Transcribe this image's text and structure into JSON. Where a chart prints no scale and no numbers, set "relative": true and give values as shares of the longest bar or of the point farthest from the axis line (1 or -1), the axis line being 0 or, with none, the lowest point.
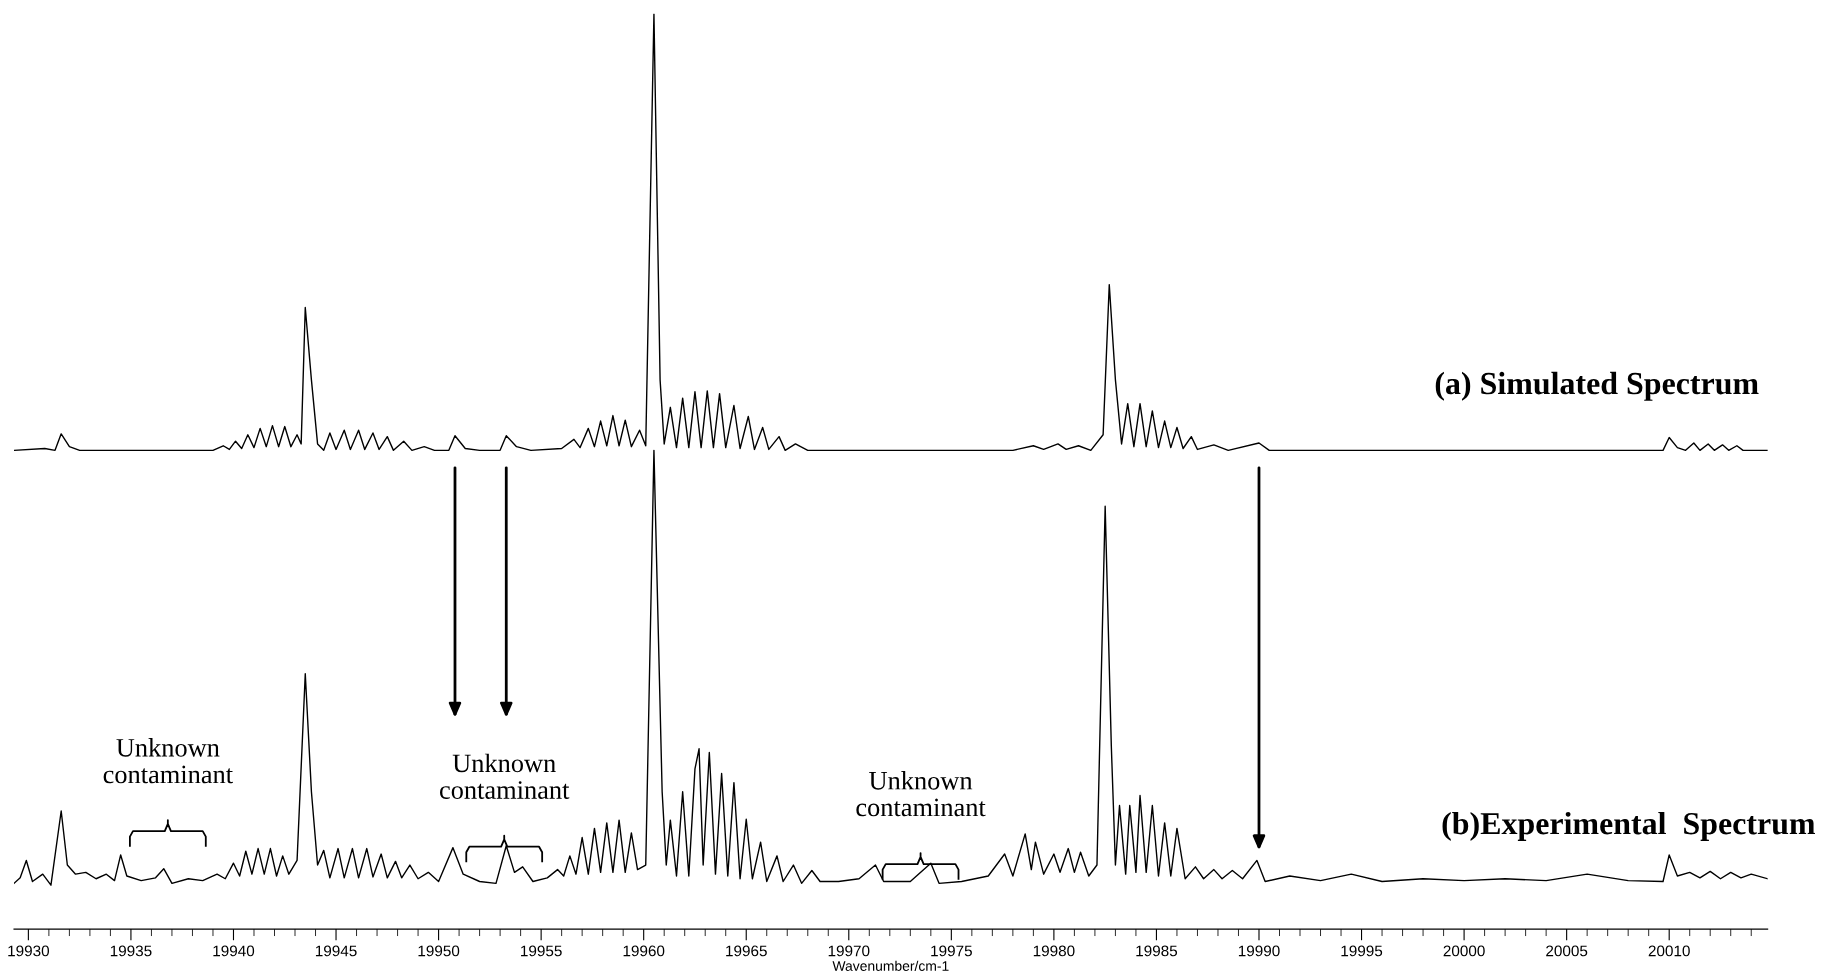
{
  "chart_data": {
    "type": "line",
    "relative": true,
    "xlabel": "Wavenumber/cm-1",
    "xlim": [
      19929.3,
      20014.8
    ],
    "xticks": [
      19930,
      19935,
      19940,
      19945,
      19950,
      19955,
      19960,
      19965,
      19970,
      19975,
      19980,
      19985,
      19990,
      19995,
      20000,
      20005,
      20010
    ],
    "grid": false,
    "legend": false,
    "marker": "none",
    "line_style": "solid",
    "annotations": [
      "Unknown\ncontaminant",
      "Unknown\ncontaminant",
      "Unknown\ncontaminant"
    ],
    "series": [
      {
        "name": "(a) Simulated Spectrum",
        "color": "#000000",
        "x": [
          19929.3,
          19930.8,
          19931.3,
          19931.6,
          19932.0,
          19932.5,
          19939.0,
          19939.5,
          19939.8,
          19940.1,
          19940.4,
          19940.7,
          19941.0,
          19941.3,
          19941.6,
          19941.9,
          19942.2,
          19942.5,
          19942.8,
          19943.1,
          19943.3,
          19943.5,
          19943.8,
          19944.1,
          19944.4,
          19944.7,
          19945.0,
          19945.4,
          19945.7,
          19946.1,
          19946.4,
          19946.8,
          19947.1,
          19947.5,
          19947.8,
          19948.3,
          19948.7,
          19949.3,
          19949.8,
          19950.5,
          19950.8,
          19951.3,
          19952.0,
          19953.0,
          19953.3,
          19953.8,
          19954.5,
          19956.0,
          19956.6,
          19956.9,
          19957.3,
          19957.6,
          19957.9,
          19958.2,
          19958.5,
          19958.8,
          19959.1,
          19959.4,
          19959.8,
          19960.1,
          19960.5,
          19960.8,
          19961.0,
          19961.3,
          19961.6,
          19961.9,
          19962.2,
          19962.5,
          19962.8,
          19963.1,
          19963.4,
          19963.7,
          19964.0,
          19964.4,
          19964.7,
          19965.1,
          19965.4,
          19965.8,
          19966.1,
          19966.6,
          19966.9,
          19967.4,
          19968.0,
          19978.0,
          19979.0,
          19979.5,
          19980.2,
          19980.6,
          19981.2,
          19981.8,
          19982.4,
          19982.7,
          19983.0,
          19983.3,
          19983.6,
          19983.9,
          19984.2,
          19984.5,
          19984.8,
          19985.1,
          19985.4,
          19985.7,
          19986.0,
          19986.3,
          19986.7,
          19987.0,
          19987.8,
          19988.5,
          19990.0,
          19990.5,
          20009.7,
          20010.0,
          20010.4,
          20010.8,
          20011.2,
          20011.5,
          20011.9,
          20012.2,
          20012.6,
          20012.9,
          20013.3,
          20013.6,
          20014.8
        ],
        "values": [
          0.523,
          0.525,
          0.523,
          0.541,
          0.527,
          0.523,
          0.523,
          0.528,
          0.524,
          0.533,
          0.525,
          0.54,
          0.526,
          0.547,
          0.527,
          0.55,
          0.527,
          0.549,
          0.527,
          0.54,
          0.53,
          0.679,
          0.6,
          0.53,
          0.523,
          0.542,
          0.524,
          0.545,
          0.524,
          0.545,
          0.524,
          0.542,
          0.524,
          0.538,
          0.523,
          0.533,
          0.523,
          0.527,
          0.523,
          0.523,
          0.539,
          0.525,
          0.523,
          0.523,
          0.539,
          0.527,
          0.523,
          0.525,
          0.535,
          0.526,
          0.547,
          0.527,
          0.555,
          0.528,
          0.561,
          0.528,
          0.556,
          0.527,
          0.545,
          0.528,
          1.0,
          0.6,
          0.53,
          0.57,
          0.526,
          0.58,
          0.526,
          0.587,
          0.526,
          0.588,
          0.526,
          0.585,
          0.526,
          0.572,
          0.525,
          0.56,
          0.524,
          0.548,
          0.524,
          0.538,
          0.523,
          0.53,
          0.523,
          0.523,
          0.528,
          0.524,
          0.53,
          0.524,
          0.528,
          0.523,
          0.54,
          0.704,
          0.6,
          0.53,
          0.574,
          0.527,
          0.574,
          0.527,
          0.566,
          0.526,
          0.555,
          0.526,
          0.548,
          0.525,
          0.538,
          0.524,
          0.529,
          0.523,
          0.531,
          0.523,
          0.523,
          0.537,
          0.526,
          0.523,
          0.531,
          0.523,
          0.53,
          0.523,
          0.529,
          0.523,
          0.528,
          0.523,
          0.523
        ]
      },
      {
        "name": "(b)Experimental  Spectrum",
        "color": "#000000",
        "x": [
          19929.3,
          19929.6,
          19929.9,
          19930.2,
          19930.7,
          19931.1,
          19931.6,
          19931.9,
          19932.3,
          19932.8,
          19933.3,
          19933.8,
          19934.2,
          19934.5,
          19934.8,
          19935.5,
          19936.2,
          19936.6,
          19937.0,
          19937.8,
          19938.5,
          19939.2,
          19939.6,
          19940.0,
          19940.3,
          19940.6,
          19940.9,
          19941.2,
          19941.5,
          19941.8,
          19942.1,
          19942.4,
          19942.7,
          19943.1,
          19943.5,
          19943.8,
          19944.1,
          19944.4,
          19944.7,
          19945.1,
          19945.4,
          19945.8,
          19946.1,
          19946.5,
          19946.8,
          19947.2,
          19947.5,
          19947.9,
          19948.2,
          19948.6,
          19949.0,
          19949.5,
          19950.0,
          19950.7,
          19951.2,
          19952.0,
          19952.8,
          19953.3,
          19953.7,
          19954.1,
          19954.6,
          19955.3,
          19955.8,
          19956.1,
          19956.4,
          19956.7,
          19957.0,
          19957.3,
          19957.6,
          19957.9,
          19958.2,
          19958.5,
          19958.8,
          19959.1,
          19959.4,
          19959.7,
          19960.1,
          19960.5,
          19960.9,
          19961.1,
          19961.3,
          19961.6,
          19961.9,
          19962.2,
          19962.5,
          19962.7,
          19962.9,
          19963.2,
          19963.5,
          19963.8,
          19964.1,
          19964.4,
          19964.7,
          19965.0,
          19965.3,
          19965.7,
          19966.0,
          19966.5,
          19966.8,
          19967.3,
          19967.7,
          19968.2,
          19968.6,
          19969.5,
          19970.5,
          19971.3,
          19971.7,
          19973.0,
          19974.0,
          19974.4,
          19975.5,
          19976.8,
          19977.6,
          19978.0,
          19978.6,
          19978.9,
          19979.1,
          19979.5,
          19980.0,
          19980.3,
          19980.7,
          19981.0,
          19981.3,
          19981.7,
          19982.1,
          19982.5,
          19982.8,
          19983.0,
          19983.2,
          19983.5,
          19983.7,
          19984.0,
          19984.2,
          19984.5,
          19984.8,
          19985.1,
          19985.4,
          19985.7,
          19986.0,
          19986.4,
          19986.9,
          19987.3,
          19987.8,
          19988.2,
          19988.7,
          19989.2,
          19989.9,
          19990.3,
          19991.5,
          19993.0,
          19994.5,
          19996.0,
          19998.0,
          20000.0,
          20002.0,
          20004.0,
          20006.0,
          20008.0,
          20009.7,
          20010.0,
          20010.4,
          20011.0,
          20011.5,
          20012.0,
          20012.5,
          20013.0,
          20013.5,
          20014.0,
          20014.8
        ],
        "values": [
          0.05,
          0.056,
          0.075,
          0.052,
          0.06,
          0.048,
          0.129,
          0.07,
          0.06,
          0.062,
          0.055,
          0.06,
          0.053,
          0.081,
          0.058,
          0.053,
          0.056,
          0.066,
          0.05,
          0.055,
          0.053,
          0.06,
          0.055,
          0.072,
          0.058,
          0.085,
          0.06,
          0.088,
          0.06,
          0.088,
          0.058,
          0.08,
          0.06,
          0.075,
          0.279,
          0.15,
          0.07,
          0.086,
          0.056,
          0.088,
          0.056,
          0.088,
          0.056,
          0.088,
          0.057,
          0.082,
          0.056,
          0.074,
          0.056,
          0.07,
          0.055,
          0.062,
          0.052,
          0.089,
          0.06,
          0.052,
          0.05,
          0.091,
          0.062,
          0.068,
          0.052,
          0.056,
          0.065,
          0.058,
          0.08,
          0.06,
          0.1,
          0.06,
          0.11,
          0.062,
          0.116,
          0.062,
          0.119,
          0.062,
          0.105,
          0.065,
          0.07,
          0.523,
          0.15,
          0.07,
          0.119,
          0.058,
          0.15,
          0.058,
          0.175,
          0.197,
          0.07,
          0.193,
          0.06,
          0.17,
          0.058,
          0.16,
          0.055,
          0.12,
          0.055,
          0.095,
          0.052,
          0.08,
          0.052,
          0.07,
          0.05,
          0.064,
          0.052,
          0.052,
          0.055,
          0.07,
          0.052,
          0.052,
          0.072,
          0.05,
          0.052,
          0.058,
          0.082,
          0.058,
          0.104,
          0.065,
          0.095,
          0.06,
          0.082,
          0.062,
          0.088,
          0.062,
          0.084,
          0.058,
          0.07,
          0.462,
          0.2,
          0.07,
          0.135,
          0.06,
          0.135,
          0.062,
          0.146,
          0.062,
          0.135,
          0.058,
          0.116,
          0.058,
          0.11,
          0.055,
          0.068,
          0.055,
          0.065,
          0.055,
          0.064,
          0.055,
          0.075,
          0.052,
          0.058,
          0.053,
          0.06,
          0.052,
          0.055,
          0.053,
          0.055,
          0.053,
          0.06,
          0.053,
          0.052,
          0.081,
          0.058,
          0.062,
          0.056,
          0.063,
          0.055,
          0.062,
          0.056,
          0.06,
          0.055
        ]
      }
    ]
  }
}
